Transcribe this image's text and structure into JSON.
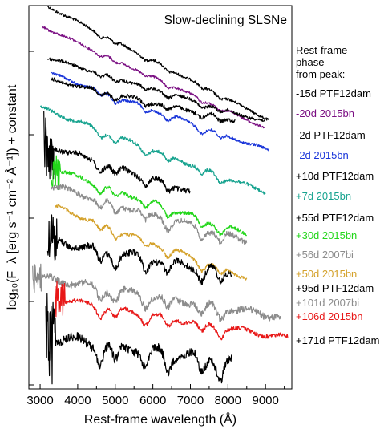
{
  "chart_data": {
    "type": "line",
    "title": "Slow-declining SLSNe",
    "xlabel": "Rest-frame wavelength (Å)",
    "ylabel": "log₁₀(F_λ [erg s⁻¹ cm⁻² Å⁻¹]) + constant",
    "xlim": [
      2700,
      9700
    ],
    "x_ticks": [
      3000,
      4000,
      5000,
      6000,
      7000,
      8000,
      9000
    ],
    "y_ticks_labeled": false,
    "grid": false,
    "legend_placement": "right-outside",
    "legend_header": [
      "Rest-frame",
      "phase",
      "from peak:"
    ],
    "series": [
      {
        "name": "-15d PTF12dam",
        "color": "#000000",
        "x_range": [
          3200,
          9100
        ]
      },
      {
        "name": "-20d 2015bn",
        "color": "#7b0f83",
        "x_range": [
          3050,
          9000
        ]
      },
      {
        "name": "-2d PTF12dam",
        "color": "#000000",
        "x_range": [
          3200,
          9000
        ]
      },
      {
        "name": "-2d 2015bn",
        "color": "#1733d9",
        "x_range": [
          3300,
          9100
        ]
      },
      {
        "name": "+10d PTF12dam",
        "color": "#000000",
        "x_range": [
          3300,
          8200
        ]
      },
      {
        "name": "+7d 2015bn",
        "color": "#17a38f",
        "x_range": [
          3000,
          9000
        ]
      },
      {
        "name": "+55d PTF12dam",
        "color": "#000000",
        "x_range": [
          3100,
          7000
        ]
      },
      {
        "name": "+30d 2015bn",
        "color": "#22d61a",
        "x_range": [
          3300,
          8500
        ]
      },
      {
        "name": "+56d 2007bi",
        "color": "#8c8c8c",
        "x_range": [
          3300,
          8500
        ]
      },
      {
        "name": "+50d 2015bn",
        "color": "#d4a12a",
        "x_range": [
          3400,
          8500
        ]
      },
      {
        "name": "+95d PTF12dam",
        "color": "#000000",
        "x_range": [
          3200,
          8100
        ]
      },
      {
        "name": "+101d 2007bi",
        "color": "#8c8c8c",
        "x_range": [
          2800,
          9400
        ]
      },
      {
        "name": "+106d 2015bn",
        "color": "#e81818",
        "x_range": [
          3400,
          9600
        ]
      },
      {
        "name": "+171d PTF12dam",
        "color": "#000000",
        "x_range": [
          3150,
          8100
        ]
      }
    ]
  }
}
